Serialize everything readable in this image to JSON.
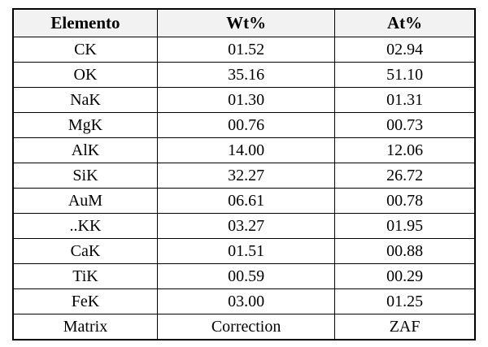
{
  "table": {
    "header": [
      "Elemento",
      "Wt%",
      "At%"
    ],
    "rows": [
      [
        "CK",
        "01.52",
        "02.94"
      ],
      [
        "OK",
        "35.16",
        "51.10"
      ],
      [
        "NaK",
        "01.30",
        "01.31"
      ],
      [
        "MgK",
        "00.76",
        "00.73"
      ],
      [
        "AlK",
        "14.00",
        "12.06"
      ],
      [
        "SiK",
        "32.27",
        "26.72"
      ],
      [
        "AuM",
        "06.61",
        "00.78"
      ],
      [
        "..KK",
        "03.27",
        "01.95"
      ],
      [
        "CaK",
        "01.51",
        "00.88"
      ],
      [
        "TiK",
        "00.59",
        "00.29"
      ],
      [
        "FeK",
        "03.00",
        "01.25"
      ],
      [
        "Matrix",
        "Correction",
        "ZAF"
      ]
    ]
  }
}
